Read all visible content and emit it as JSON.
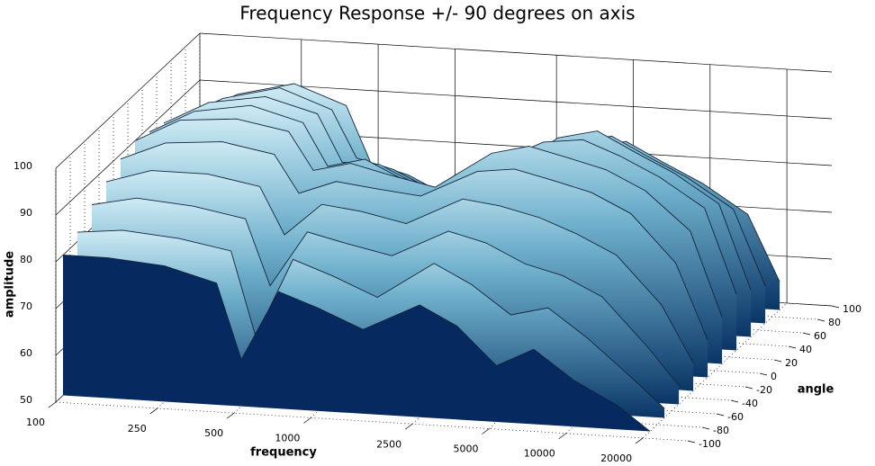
{
  "chart_data": {
    "type": "surface",
    "title": "Frequency Response +/- 90 degrees on axis",
    "xlabel": "frequency",
    "ylabel": "angle",
    "zlabel": "amplitude",
    "x": [
      100,
      150,
      250,
      400,
      500,
      700,
      1000,
      1500,
      2500,
      3500,
      5000,
      7000,
      10000,
      15000,
      20000
    ],
    "angles": [
      -90,
      -70,
      -50,
      -30,
      -10,
      10,
      30,
      50,
      70,
      90
    ],
    "values": [
      [
        80,
        80,
        79,
        76,
        60,
        75,
        72,
        68,
        74,
        70,
        62,
        66,
        60,
        55,
        50
      ],
      [
        82,
        83,
        82,
        80,
        62,
        79,
        76,
        72,
        80,
        76,
        70,
        72,
        66,
        58,
        52
      ],
      [
        85,
        87,
        86,
        84,
        70,
        82,
        80,
        78,
        84,
        82,
        78,
        76,
        72,
        62,
        54
      ],
      [
        87,
        90,
        90,
        88,
        78,
        85,
        84,
        82,
        88,
        87,
        85,
        82,
        78,
        68,
        56
      ],
      [
        89,
        93,
        94,
        92,
        84,
        87,
        86,
        85,
        91,
        92,
        90,
        88,
        84,
        74,
        58
      ],
      [
        90,
        95,
        96,
        94,
        86,
        88,
        86,
        84,
        92,
        94,
        92,
        90,
        86,
        78,
        60
      ],
      [
        89,
        94,
        96,
        93,
        84,
        86,
        82,
        80,
        88,
        92,
        93,
        90,
        86,
        80,
        62
      ],
      [
        88,
        93,
        95,
        92,
        82,
        82,
        78,
        76,
        84,
        90,
        92,
        88,
        84,
        78,
        60
      ],
      [
        86,
        91,
        94,
        90,
        80,
        78,
        74,
        72,
        80,
        86,
        88,
        84,
        80,
        74,
        58
      ],
      [
        84,
        89,
        92,
        88,
        76,
        74,
        70,
        68,
        76,
        82,
        84,
        80,
        76,
        70,
        56
      ]
    ],
    "xlim": [
      100,
      30000
    ],
    "xticks": [
      100,
      250,
      500,
      1000,
      2500,
      5000,
      10000,
      20000
    ],
    "xscale": "log",
    "ylim": [
      -100,
      100
    ],
    "yticks": [
      -100,
      -80,
      -60,
      -40,
      -20,
      0,
      20,
      40,
      60,
      80,
      100
    ],
    "zlim": [
      50,
      100
    ],
    "zticks": [
      50,
      60,
      70,
      80,
      90,
      100
    ],
    "grid": true
  }
}
